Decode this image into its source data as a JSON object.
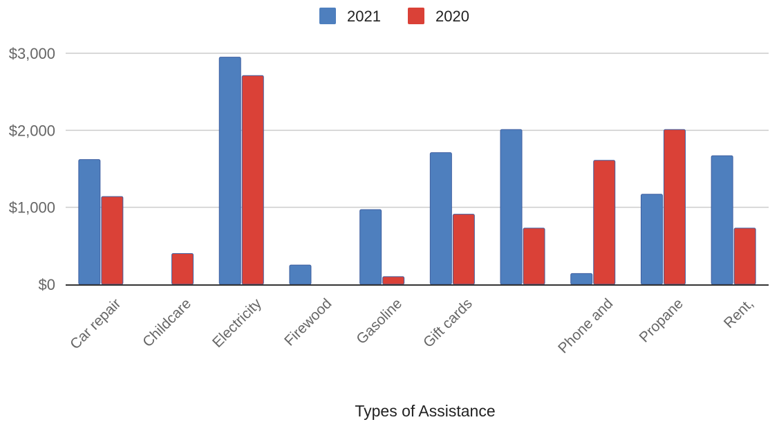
{
  "chart_data": {
    "type": "bar",
    "xlabel": "Types of Assistance",
    "ylabel": "",
    "ylim": [
      0,
      3000
    ],
    "yticks": [
      0,
      1000,
      2000,
      3000
    ],
    "ytick_labels": [
      "$0",
      "$1,000",
      "$2,000",
      "$3,000"
    ],
    "grid": true,
    "legend_position": "top",
    "categories": [
      "Car repair",
      "Childcare",
      "Electricity",
      "Firewood",
      "Gasoline",
      "Gift cards",
      "",
      "Phone and",
      "Propane",
      "Rent,"
    ],
    "series": [
      {
        "name": "2021",
        "color": "#4e7fbe",
        "values": [
          1620,
          0,
          2950,
          250,
          970,
          1710,
          2010,
          140,
          1170,
          1670
        ]
      },
      {
        "name": "2020",
        "color": "#da4137",
        "values": [
          1140,
          400,
          2710,
          0,
          100,
          910,
          730,
          1610,
          2010,
          730
        ]
      }
    ]
  }
}
